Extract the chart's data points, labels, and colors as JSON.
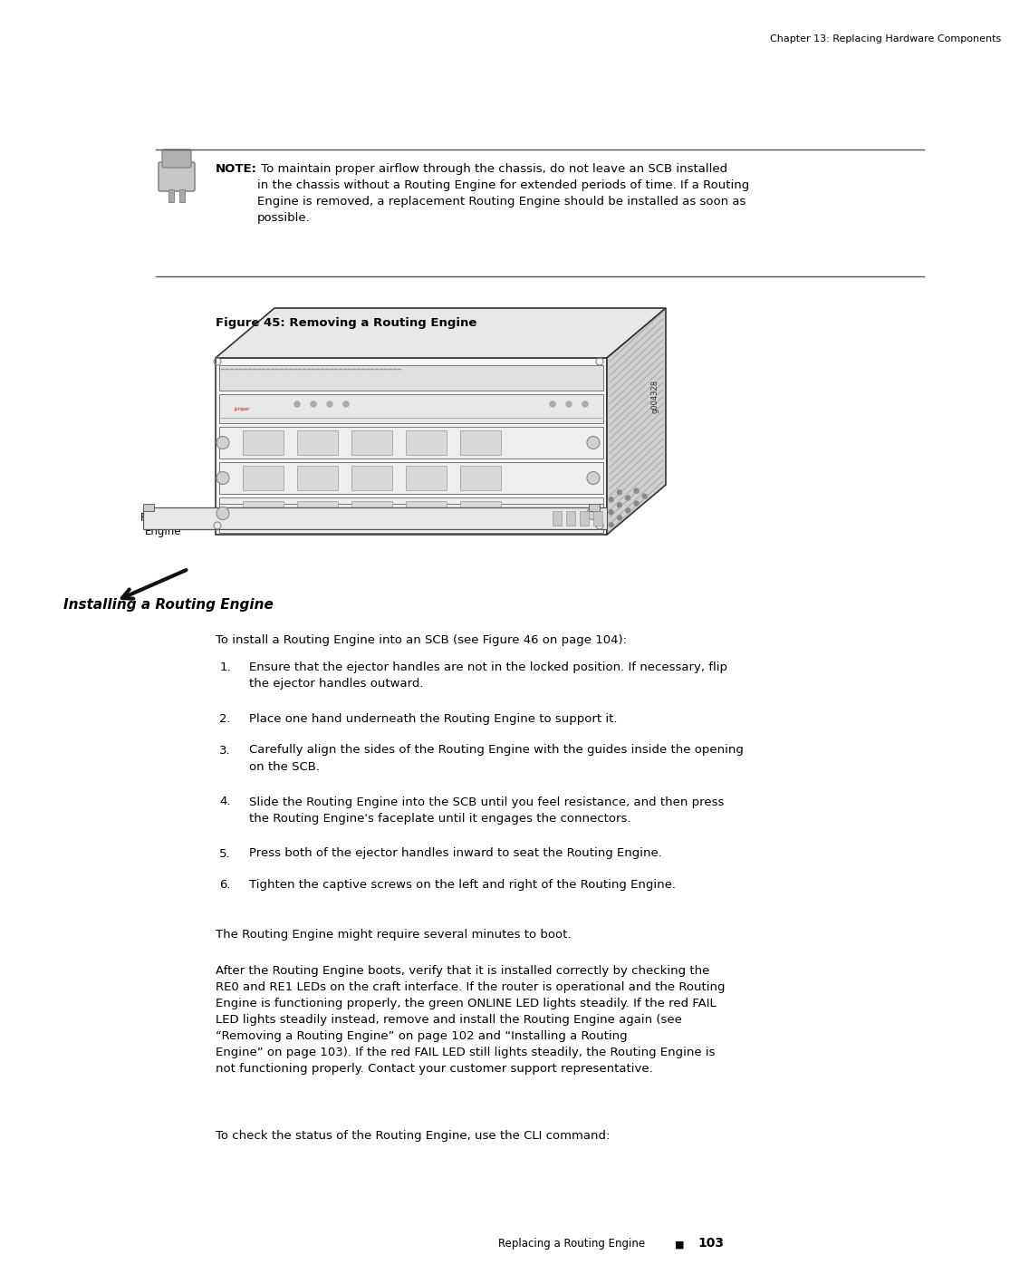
{
  "background_color": "#ffffff",
  "page_width": 10.8,
  "page_height": 13.97,
  "header_text": "Chapter 13: Replacing Hardware Components",
  "note_bold": "NOTE:",
  "note_text": " To maintain proper airflow through the chassis, do not leave an SCB installed\nin the chassis without a Routing Engine for extended periods of time. If a Routing\nEngine is removed, a replacement Routing Engine should be installed as soon as\npossible.",
  "figure_caption": "Figure 45: Removing a Routing Engine",
  "routing_engine_label": "Routing\nEngine",
  "section_title": "Installing a Routing Engine",
  "intro_text": "To install a Routing Engine into an SCB (see Figure 46 on page 104):",
  "steps": [
    "Ensure that the ejector handles are not in the locked position. If necessary, flip\nthe ejector handles outward.",
    "Place one hand underneath the Routing Engine to support it.",
    "Carefully align the sides of the Routing Engine with the guides inside the opening\non the SCB.",
    "Slide the Routing Engine into the SCB until you feel resistance, and then press\nthe Routing Engine's faceplate until it engages the connectors.",
    "Press both of the ejector handles inward to seat the Routing Engine.",
    "Tighten the captive screws on the left and right of the Routing Engine."
  ],
  "para1_text": "The Routing Engine might require several minutes to boot.",
  "para2_full": "After the Routing Engine boots, verify that it is installed correctly by checking the\nRE0 and RE1 LEDs on the craft interface. If the router is operational and the Routing\nEngine is functioning properly, the green ONLINE LED lights steadily. If the red FAIL\nLED lights steadily instead, remove and install the Routing Engine again (see\n“Removing a Routing Engine” on page 102 and “Installing a Routing\nEngine” on page 103). If the red FAIL LED still lights steadily, the Routing Engine is\nnot functioning properly. Contact your customer support representative.",
  "para3_text": "To check the status of the Routing Engine, use the CLI command:",
  "footer_left": "Replacing a Routing Engine",
  "footer_symbol": "■",
  "footer_page": "103"
}
